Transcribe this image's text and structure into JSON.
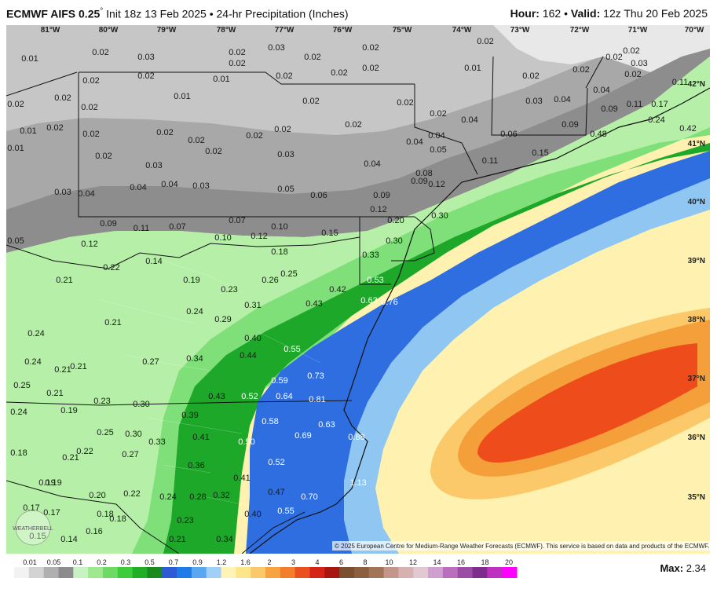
{
  "header": {
    "model": "ECMWF AIFS 0.25",
    "degree": "°",
    "init": "Init 18z 13 Feb 2025",
    "bullet": "•",
    "field": "24-hr Precipitation (Inches)",
    "hour_label": "Hour:",
    "hour": "162",
    "valid_label": "Valid:",
    "valid": "12z Thu 20 Feb 2025"
  },
  "longitudes": [
    "81°W",
    "80°W",
    "79°W",
    "78°W",
    "77°W",
    "76°W",
    "75°W",
    "74°W",
    "73°W",
    "72°W",
    "71°W",
    "70°W"
  ],
  "latitudes": [
    "42°N",
    "41°N",
    "40°N",
    "39°N",
    "38°N",
    "37°N",
    "36°N",
    "35°N"
  ],
  "copyright": "© 2025 European Centre for Medium-Range Weather Forecasts (ECMWF). This service is based on data and products of the ECMWF.",
  "logo": "WEATHERBELL",
  "colorbar": {
    "ticks": [
      "0.01",
      "0.05",
      "0.1",
      "0.2",
      "0.3",
      "0.5",
      "0.7",
      "0.9",
      "1.2",
      "1.6",
      "2",
      "3",
      "4",
      "6",
      "8",
      "10",
      "12",
      "14",
      "16",
      "18",
      "20"
    ],
    "colors": [
      "#f2f2f2",
      "#d3d3d3",
      "#b0b0b0",
      "#8c8c8c",
      "#c7f3c2",
      "#9fe890",
      "#6ddb63",
      "#3ecc3a",
      "#1fae25",
      "#1a8a1e",
      "#2d5bd6",
      "#1e7be8",
      "#58a7f0",
      "#a0d0f5",
      "#fff3b8",
      "#fde68a",
      "#fbc86a",
      "#f7a33f",
      "#f27d2a",
      "#ea4f1e",
      "#d62318",
      "#a81612",
      "#7a5030",
      "#8a6040",
      "#a37558",
      "#c4968a",
      "#d6b1b0",
      "#e2c8d0",
      "#cf9fcf",
      "#b96fbd",
      "#9b4da6",
      "#7e2d8c",
      "#c030c0",
      "#ff00ff"
    ]
  },
  "max_label": "Max:",
  "max_value": "2.34",
  "colors": {
    "land_light_gray": "#c6c6c6",
    "land_dark_gray": "#8d8d8d",
    "green_light": "#b6f0a8",
    "green_mid": "#59d45a",
    "green_dark": "#1ea82a",
    "blue": "#2f6ee0",
    "blue_light": "#8fc6f2",
    "yellow": "#fff2b0",
    "orange": "#f59f3a",
    "red_orange": "#ee4c1a"
  },
  "values": [
    [
      "0.01",
      38,
      74
    ],
    [
      "0.02",
      128,
      66
    ],
    [
      "0.03",
      186,
      72
    ],
    [
      "0.02",
      116,
      102
    ],
    [
      "0.02",
      186,
      96
    ],
    [
      "0.02",
      302,
      66
    ],
    [
      "0.02",
      302,
      80
    ],
    [
      "0.03",
      352,
      60
    ],
    [
      "0.02",
      398,
      72
    ],
    [
      "0.02",
      472,
      60
    ],
    [
      "0.02",
      472,
      86
    ],
    [
      "0.02",
      432,
      92
    ],
    [
      "0.02",
      362,
      96
    ],
    [
      "0.01",
      282,
      100
    ],
    [
      "0.02",
      20,
      132
    ],
    [
      "0.02",
      80,
      124
    ],
    [
      "0.02",
      114,
      136
    ],
    [
      "0.01",
      232,
      122
    ],
    [
      "0.02",
      396,
      128
    ],
    [
      "0.02",
      516,
      130
    ],
    [
      "0.02",
      558,
      144
    ],
    [
      "0.01",
      36,
      166
    ],
    [
      "0.02",
      70,
      162
    ],
    [
      "0.02",
      116,
      170
    ],
    [
      "0.02",
      210,
      168
    ],
    [
      "0.02",
      250,
      178
    ],
    [
      "0.02",
      324,
      172
    ],
    [
      "0.02",
      360,
      164
    ],
    [
      "0.02",
      450,
      158
    ],
    [
      "0.01",
      20,
      188
    ],
    [
      "0.02",
      132,
      198
    ],
    [
      "0.02",
      272,
      192
    ],
    [
      "0.03",
      364,
      196
    ],
    [
      "0.03",
      196,
      210
    ],
    [
      "0.04",
      110,
      246
    ],
    [
      "0.04",
      176,
      238
    ],
    [
      "0.04",
      216,
      234
    ],
    [
      "0.03",
      256,
      236
    ],
    [
      "0.05",
      364,
      240
    ],
    [
      "0.06",
      406,
      248
    ],
    [
      "0.04",
      474,
      208
    ],
    [
      "0.04",
      528,
      180
    ],
    [
      "0.04",
      556,
      172
    ],
    [
      "0.05",
      558,
      190
    ],
    [
      "0.04",
      598,
      152
    ],
    [
      "0.01",
      602,
      86
    ],
    [
      "0.02",
      618,
      52
    ],
    [
      "0.02",
      676,
      96
    ],
    [
      "0.02",
      740,
      88
    ],
    [
      "0.02",
      782,
      72
    ],
    [
      "0.02",
      804,
      64
    ],
    [
      "0.03",
      814,
      80
    ],
    [
      "0.02",
      806,
      94
    ],
    [
      "0.03",
      680,
      128
    ],
    [
      "0.04",
      716,
      126
    ],
    [
      "0.04",
      766,
      114
    ],
    [
      "0.09",
      776,
      138
    ],
    [
      "0.11",
      808,
      132
    ],
    [
      "0.17",
      840,
      132
    ],
    [
      "0.24",
      836,
      152
    ],
    [
      "0.09",
      726,
      158
    ],
    [
      "0.48",
      762,
      170
    ],
    [
      "0.06",
      648,
      170
    ],
    [
      "0.15",
      688,
      194
    ],
    [
      "0.11",
      624,
      204
    ],
    [
      "0.42",
      876,
      163
    ],
    [
      "0.11",
      866,
      104
    ],
    [
      "0.08",
      540,
      220
    ],
    [
      "0.09",
      534,
      230
    ],
    [
      "0.12",
      556,
      234
    ],
    [
      "0.03",
      80,
      244
    ],
    [
      "0.09",
      138,
      284
    ],
    [
      "0.05",
      20,
      306
    ],
    [
      "0.12",
      114,
      310
    ],
    [
      "0.11",
      180,
      290
    ],
    [
      "0.07",
      226,
      288
    ],
    [
      "0.10",
      284,
      302
    ],
    [
      "0.07",
      302,
      280
    ],
    [
      "0.12",
      330,
      300
    ],
    [
      "0.10",
      356,
      288
    ],
    [
      "0.09",
      486,
      248
    ],
    [
      "0.12",
      482,
      266
    ],
    [
      "0.20",
      504,
      280
    ],
    [
      "0.30",
      560,
      274
    ],
    [
      "0.30",
      502,
      306
    ],
    [
      "0.15",
      420,
      296
    ],
    [
      "0.18",
      356,
      320
    ],
    [
      "0.25",
      368,
      348
    ],
    [
      "0.26",
      344,
      356
    ],
    [
      "0.33",
      472,
      324
    ],
    [
      "0.53",
      478,
      356
    ],
    [
      "0.42",
      430,
      368
    ],
    [
      "0.43",
      400,
      386
    ],
    [
      "0.63",
      470,
      382
    ],
    [
      "0.76",
      496,
      384
    ],
    [
      "0.31",
      322,
      388
    ],
    [
      "0.21",
      82,
      356
    ],
    [
      "0.22",
      142,
      340
    ],
    [
      "0.14",
      196,
      332
    ],
    [
      "0.19",
      244,
      356
    ],
    [
      "0.23",
      292,
      368
    ],
    [
      "0.24",
      248,
      396
    ],
    [
      "0.29",
      284,
      406
    ],
    [
      "0.21",
      144,
      410
    ],
    [
      "0.24",
      46,
      424
    ],
    [
      "0.40",
      322,
      430
    ],
    [
      "0.44",
      316,
      452
    ],
    [
      "0.55",
      372,
      444
    ],
    [
      "0.73",
      402,
      478
    ],
    [
      "0.27",
      192,
      460
    ],
    [
      "0.34",
      248,
      456
    ],
    [
      "0.24",
      42,
      460
    ],
    [
      "0.21",
      80,
      470
    ],
    [
      "0.21",
      100,
      466
    ],
    [
      "0.25",
      28,
      490
    ],
    [
      "0.21",
      70,
      500
    ],
    [
      "0.23",
      130,
      510
    ],
    [
      "0.30",
      180,
      514
    ],
    [
      "0.59",
      356,
      484
    ],
    [
      "0.64",
      362,
      504
    ],
    [
      "0.81",
      404,
      508
    ],
    [
      "0.52",
      318,
      504
    ],
    [
      "0.43",
      276,
      504
    ],
    [
      "0.39",
      242,
      528
    ],
    [
      "0.24",
      24,
      524
    ],
    [
      "0.19",
      88,
      522
    ],
    [
      "0.58",
      344,
      536
    ],
    [
      "0.63",
      416,
      540
    ],
    [
      "0.69",
      386,
      554
    ],
    [
      "0.25",
      134,
      550
    ],
    [
      "0.30",
      170,
      552
    ],
    [
      "0.33",
      200,
      562
    ],
    [
      "0.41",
      256,
      556
    ],
    [
      "0.50",
      314,
      562
    ],
    [
      "0.88",
      454,
      556
    ],
    [
      "0.18",
      24,
      576
    ],
    [
      "0.22",
      108,
      574
    ],
    [
      "0.21",
      90,
      582
    ],
    [
      "0.27",
      166,
      578
    ],
    [
      "0.36",
      250,
      592
    ],
    [
      "0.52",
      352,
      588
    ],
    [
      "0.19",
      60,
      614
    ],
    [
      "0.19",
      68,
      614
    ],
    [
      "0.41",
      308,
      608
    ],
    [
      "1.13",
      456,
      614
    ],
    [
      "0.20",
      124,
      630
    ],
    [
      "0.22",
      168,
      628
    ],
    [
      "0.24",
      214,
      632
    ],
    [
      "0.28",
      252,
      632
    ],
    [
      "0.32",
      282,
      630
    ],
    [
      "0.47",
      352,
      626
    ],
    [
      "0.70",
      394,
      632
    ],
    [
      "0.17",
      40,
      646
    ],
    [
      "0.17",
      66,
      652
    ],
    [
      "0.18",
      134,
      654
    ],
    [
      "0.18",
      150,
      660
    ],
    [
      "0.23",
      236,
      662
    ],
    [
      "0.40",
      322,
      654
    ],
    [
      "0.55",
      364,
      650
    ],
    [
      "0.15",
      48,
      682
    ],
    [
      "0.14",
      88,
      686
    ],
    [
      "0.16",
      120,
      676
    ],
    [
      "0.21",
      226,
      686
    ],
    [
      "0.34",
      286,
      686
    ]
  ]
}
